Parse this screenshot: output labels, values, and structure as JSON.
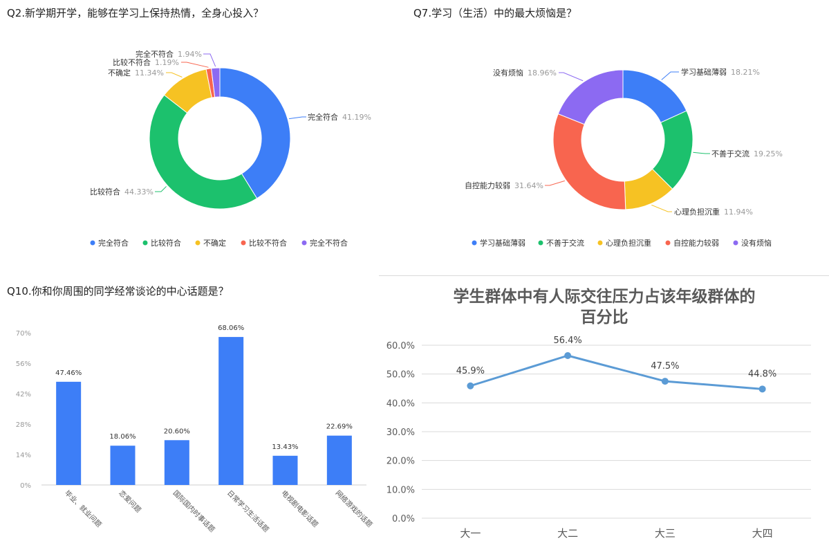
{
  "chart_data": [
    {
      "type": "pie",
      "title": "Q2.新学期开学，能够在学习上保持热情，全身心投入？",
      "labels": [
        "完全符合",
        "比较符合",
        "不确定",
        "比较不符合",
        "完全不符合"
      ],
      "values": [
        41.19,
        44.33,
        11.34,
        1.19,
        1.94
      ],
      "value_labels": [
        "41.19%",
        "44.33%",
        "11.34%",
        "1.19%",
        "1.94%"
      ],
      "colors": [
        "#3d7ef7",
        "#1cc16d",
        "#f6c223",
        "#f8654f",
        "#8c6af2"
      ],
      "legend": "bottom"
    },
    {
      "type": "pie",
      "title": "Q7.学习（生活）中的最大烦恼是？",
      "labels": [
        "学习基础薄弱",
        "不善于交流",
        "心理负担沉重",
        "自控能力较弱",
        "没有烦恼"
      ],
      "values": [
        18.21,
        19.25,
        11.94,
        31.64,
        18.96
      ],
      "value_labels": [
        "18.21%",
        "19.25%",
        "11.94%",
        "31.64%",
        "18.96%"
      ],
      "colors": [
        "#3d7ef7",
        "#1cc16d",
        "#f6c223",
        "#f8654f",
        "#8c6af2"
      ],
      "legend": "bottom"
    },
    {
      "type": "bar",
      "title": "Q10.你和你周围的同学经常谈论的中心话题是？",
      "categories": [
        "毕业、就业问题",
        "恋爱问题",
        "国际国内时事话题",
        "日常学习生活话题",
        "电视剧电影话题",
        "网络游戏的话题"
      ],
      "values": [
        47.46,
        18.06,
        20.6,
        68.06,
        13.43,
        22.69
      ],
      "value_labels": [
        "47.46%",
        "18.06%",
        "20.60%",
        "68.06%",
        "13.43%",
        "22.69%"
      ],
      "yticks": [
        "0%",
        "14%",
        "28%",
        "42%",
        "56%",
        "70%"
      ],
      "ylim": [
        0,
        70
      ],
      "color": "#3d7ef7",
      "grid": false
    },
    {
      "type": "line",
      "title_lines": [
        "学生群体中有人际交往压力占该年级群体的",
        "百分比"
      ],
      "categories": [
        "大一",
        "大二",
        "大三",
        "大四"
      ],
      "values": [
        45.9,
        56.4,
        47.5,
        44.8
      ],
      "value_labels": [
        "45.9%",
        "56.4%",
        "47.5%",
        "44.8%"
      ],
      "yticks": [
        "0.0%",
        "10.0%",
        "20.0%",
        "30.0%",
        "40.0%",
        "50.0%",
        "60.0%"
      ],
      "ylim": [
        0,
        60
      ],
      "color": "#5b9bd5",
      "grid": true
    }
  ]
}
